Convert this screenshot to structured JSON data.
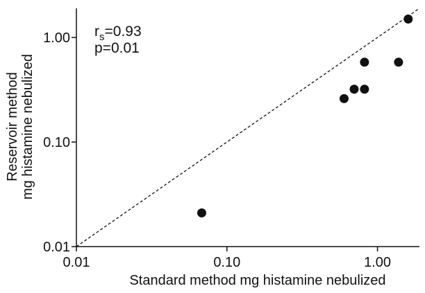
{
  "chart_data": {
    "type": "scatter",
    "xlabel": "Standard method  mg histamine nebulized",
    "ylabel_lines": [
      "Reservoir method",
      "mg histamine nebulized"
    ],
    "x_scale": "log",
    "y_scale": "log",
    "xlim": [
      0.01,
      1.9
    ],
    "ylim": [
      0.01,
      1.9
    ],
    "x_ticks": [
      {
        "value": 0.01,
        "label": "0.01"
      },
      {
        "value": 0.1,
        "label": "0.10"
      },
      {
        "value": 1.0,
        "label": "1.00"
      }
    ],
    "y_ticks": [
      {
        "value": 0.01,
        "label": "0.01"
      },
      {
        "value": 0.1,
        "label": "0.10"
      },
      {
        "value": 1.0,
        "label": "1.00"
      }
    ],
    "identity_line": true,
    "grid": false,
    "annotation": {
      "r_main": "r",
      "r_sub": "s",
      "r_value": "=0.93",
      "p_text": "p=0.01"
    },
    "points": [
      {
        "x": 0.068,
        "y": 0.021
      },
      {
        "x": 0.6,
        "y": 0.26
      },
      {
        "x": 0.7,
        "y": 0.32
      },
      {
        "x": 0.82,
        "y": 0.32
      },
      {
        "x": 0.82,
        "y": 0.58
      },
      {
        "x": 1.38,
        "y": 0.58
      },
      {
        "x": 1.6,
        "y": 1.5
      }
    ]
  }
}
